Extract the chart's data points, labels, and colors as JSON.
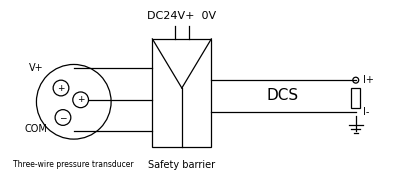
{
  "title": "DC24V+  0V",
  "transducer_label": "Three-wire pressure transducer",
  "barrier_label": "Safety barrier",
  "dcs_label": "DCS",
  "vplus_label": "V+",
  "com_label": "COM",
  "iplus_label": "I+",
  "iminus_label": "I-",
  "bg_color": "#ffffff",
  "line_color": "#000000",
  "font_size": 7,
  "title_font_size": 8
}
